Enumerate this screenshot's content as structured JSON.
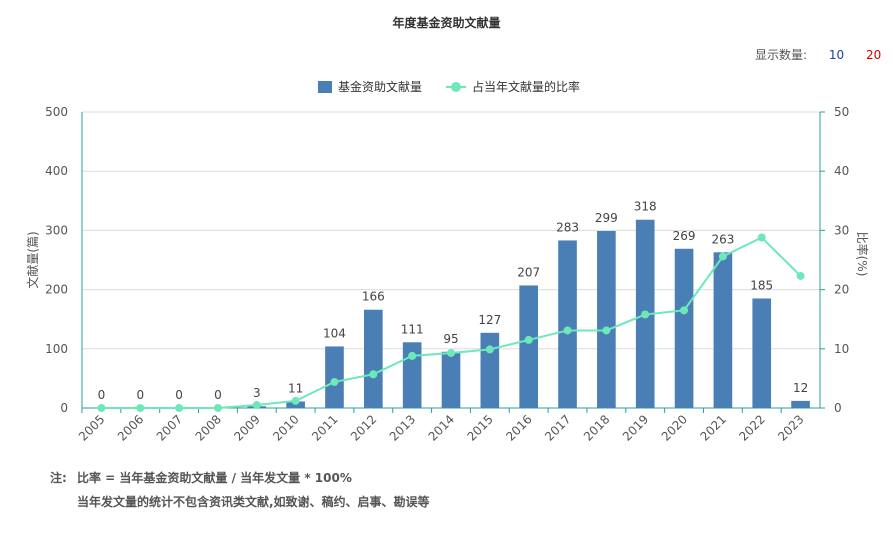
{
  "title": "年度基金资助文献量",
  "display_count": {
    "label": "显示数量:",
    "options": [
      "10",
      "20"
    ]
  },
  "colors": {
    "bar": "#4a7fb5",
    "line": "#6ee8b8",
    "axis_right": "#2aa198",
    "grid": "#dcdcdc"
  },
  "notes": {
    "label": "注:",
    "line1": "比率 = 当年基金资助文献量 / 当年发文量 * 100%",
    "line2": "当年发文量的统计不包含资讯类文献,如致谢、稿约、启事、勘误等"
  },
  "chart_data": {
    "type": "bar",
    "categories": [
      "2005",
      "2006",
      "2007",
      "2008",
      "2009",
      "2010",
      "2011",
      "2012",
      "2013",
      "2014",
      "2015",
      "2016",
      "2017",
      "2018",
      "2019",
      "2020",
      "2021",
      "2022",
      "2023"
    ],
    "series": [
      {
        "name": "基金资助文献量",
        "type": "bar",
        "axis": "left",
        "values": [
          0,
          0,
          0,
          0,
          3,
          11,
          104,
          166,
          111,
          95,
          127,
          207,
          283,
          299,
          318,
          269,
          263,
          185,
          12
        ],
        "labels": [
          "0",
          "0",
          "0",
          "0",
          "3",
          "11",
          "104",
          "166",
          "111",
          "95",
          "127",
          "207",
          "283",
          "299",
          "318",
          "269",
          "263",
          "185",
          "12"
        ]
      },
      {
        "name": "占当年文献量的比率",
        "type": "line",
        "axis": "right",
        "values": [
          0,
          0,
          0,
          0,
          0.5,
          1.2,
          4.4,
          5.7,
          8.8,
          9.3,
          9.9,
          11.5,
          13.1,
          13.1,
          15.8,
          16.5,
          25.6,
          28.8,
          22.3
        ]
      }
    ],
    "ylabel": "文献量(篇)",
    "y2label": "比率(%)",
    "ylim": [
      0,
      500
    ],
    "y2lim": [
      0,
      50
    ],
    "yticks": [
      "0",
      "100",
      "200",
      "300",
      "400",
      "500"
    ],
    "y2ticks": [
      "0",
      "10",
      "20",
      "30",
      "40",
      "50"
    ],
    "grid": true,
    "legend_position": "top-center"
  }
}
